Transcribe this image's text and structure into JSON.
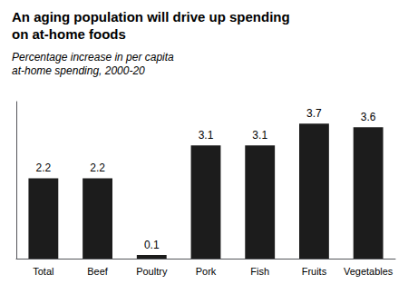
{
  "chart_data": {
    "type": "bar",
    "title": "An aging population will drive up spending\non at-home foods",
    "subtitle": "Percentage increase in per capita\nat-home spending, 2000-20",
    "categories": [
      "Total",
      "Beef",
      "Poultry",
      "Pork",
      "Fish",
      "Fruits",
      "Vegetables"
    ],
    "values": [
      2.2,
      2.2,
      0.1,
      3.1,
      3.1,
      3.7,
      3.6
    ],
    "color": "#1c1c1c",
    "ylim": [
      0,
      4.3
    ],
    "grid": false,
    "data_labels": true,
    "tick_labels": "x"
  }
}
